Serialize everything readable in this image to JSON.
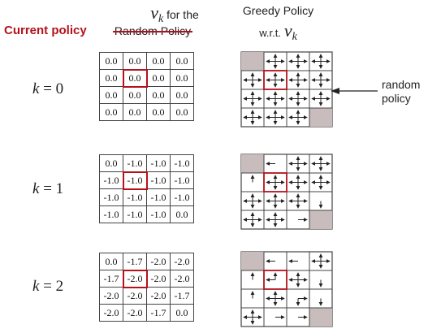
{
  "headers": {
    "values_title_math": "v",
    "values_title_sub": "k",
    "values_title_suffix": "for the",
    "values_title_struck": "Random Policy",
    "current_policy": "Current policy",
    "greedy_title_line1": "Greedy Policy",
    "greedy_title_line2_prefix": "w.r.t.",
    "greedy_title_math": "v",
    "greedy_title_sub": "k"
  },
  "random_policy_label": [
    "random",
    "policy"
  ],
  "colors": {
    "accent": "#b3121b",
    "terminal": "#c8bcbc",
    "grid": "#444444"
  },
  "rows": [
    {
      "k_var": "k",
      "k_eq": "= 0",
      "values": [
        [
          "0.0",
          "0.0",
          "0.0",
          "0.0"
        ],
        [
          "0.0",
          "0.0",
          "0.0",
          "0.0"
        ],
        [
          "0.0",
          "0.0",
          "0.0",
          "0.0"
        ],
        [
          "0.0",
          "0.0",
          "0.0",
          "0.0"
        ]
      ],
      "highlight": [
        1,
        1
      ],
      "policy": [
        [
          "T",
          "NSEW",
          "NSEW",
          "NSEW"
        ],
        [
          "NSEW",
          "NSEW",
          "NSEW",
          "NSEW"
        ],
        [
          "NSEW",
          "NSEW",
          "NSEW",
          "NSEW"
        ],
        [
          "NSEW",
          "NSEW",
          "NSEW",
          "T"
        ]
      ]
    },
    {
      "k_var": "k",
      "k_eq": "= 1",
      "values": [
        [
          "0.0",
          "-1.0",
          "-1.0",
          "-1.0"
        ],
        [
          "-1.0",
          "-1.0",
          "-1.0",
          "-1.0"
        ],
        [
          "-1.0",
          "-1.0",
          "-1.0",
          "-1.0"
        ],
        [
          "-1.0",
          "-1.0",
          "-1.0",
          "0.0"
        ]
      ],
      "highlight": [
        1,
        1
      ],
      "policy": [
        [
          "T",
          "W",
          "NSEW",
          "NSEW"
        ],
        [
          "N",
          "NSEW",
          "NSEW",
          "NSEW"
        ],
        [
          "NSEW",
          "NSEW",
          "NSEW",
          "S"
        ],
        [
          "NSEW",
          "NSEW",
          "E",
          "T"
        ]
      ]
    },
    {
      "k_var": "k",
      "k_eq": "= 2",
      "values": [
        [
          "0.0",
          "-1.7",
          "-2.0",
          "-2.0"
        ],
        [
          "-1.7",
          "-2.0",
          "-2.0",
          "-2.0"
        ],
        [
          "-2.0",
          "-2.0",
          "-2.0",
          "-1.7"
        ],
        [
          "-2.0",
          "-2.0",
          "-1.7",
          "0.0"
        ]
      ],
      "highlight": [
        1,
        1
      ],
      "policy": [
        [
          "T",
          "W",
          "W",
          "NSEW"
        ],
        [
          "N",
          "NW",
          "NSEW",
          "S"
        ],
        [
          "N",
          "NSEW",
          "SE",
          "S"
        ],
        [
          "NSEW",
          "E",
          "E",
          "T"
        ]
      ]
    }
  ]
}
